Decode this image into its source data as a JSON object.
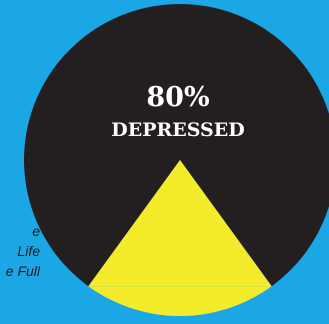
{
  "chart_data": {
    "type": "pie",
    "categories": [
      "DEPRESSED",
      null
    ],
    "values": [
      80,
      20
    ],
    "value_labels": [
      "80%",
      null
    ],
    "colors": [
      "#231f20",
      "#f4ec2a"
    ],
    "annotations": [
      "e",
      "Life",
      "e Full"
    ]
  }
}
